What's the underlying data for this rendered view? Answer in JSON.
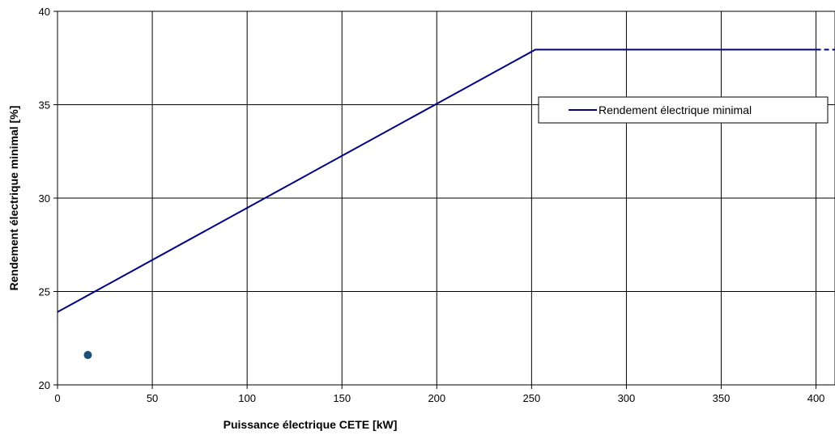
{
  "chart_data": {
    "type": "line",
    "xlabel": "Puissance électrique CETE [kW]",
    "ylabel": "Rendement électrique minimal [%]",
    "xlim": [
      0,
      410
    ],
    "ylim": [
      20,
      40
    ],
    "x_ticks": [
      "0",
      "50",
      "100",
      "150",
      "200",
      "250",
      "300",
      "350",
      "400"
    ],
    "y_ticks": [
      "20",
      "25",
      "30",
      "35",
      "40"
    ],
    "grid": true,
    "legend_position": "right",
    "series": [
      {
        "name": "Rendement électrique minimal",
        "color": "#000080",
        "x": [
          0,
          252,
          400
        ],
        "y": [
          23.9,
          37.95,
          37.95
        ]
      },
      {
        "name": "",
        "color": "#000080",
        "style": "dashed",
        "x": [
          400,
          410
        ],
        "y": [
          37.95,
          37.95
        ]
      }
    ],
    "points": [
      {
        "x": 16,
        "y": 21.6,
        "color": "#1f4e79"
      }
    ]
  }
}
